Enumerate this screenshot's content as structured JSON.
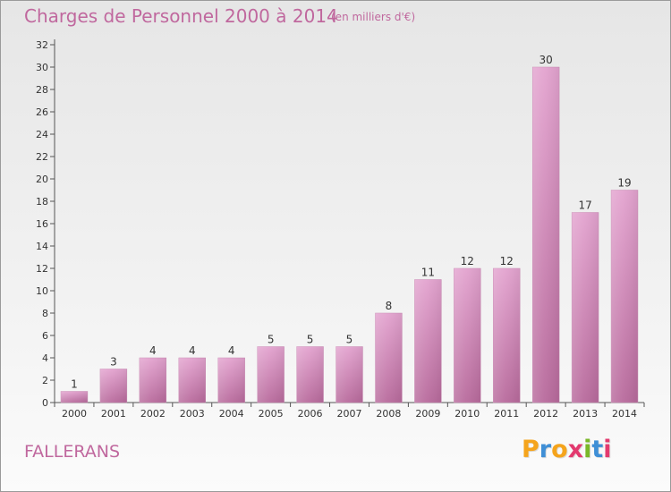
{
  "chart_data": {
    "type": "bar",
    "title": "Charges de Personnel 2000 à 2014",
    "subtitle": "(en milliers d'€)",
    "categories": [
      "2000",
      "2001",
      "2002",
      "2003",
      "2004",
      "2005",
      "2006",
      "2007",
      "2008",
      "2009",
      "2010",
      "2011",
      "2012",
      "2013",
      "2014"
    ],
    "values": [
      1,
      3,
      4,
      4,
      4,
      5,
      5,
      5,
      8,
      11,
      12,
      12,
      30,
      17,
      19
    ],
    "ylim": [
      0,
      32
    ],
    "yticks": [
      0,
      2,
      4,
      6,
      8,
      10,
      12,
      14,
      16,
      18,
      20,
      22,
      24,
      26,
      28,
      30,
      32
    ],
    "xlabel": "",
    "ylabel": "",
    "grid": false,
    "bar_color": "#d88cbf"
  },
  "footer": {
    "place": "FALLERANS",
    "logo": [
      "P",
      "r",
      "o",
      "x",
      "i",
      "t",
      "i"
    ]
  },
  "colors": {
    "accent": "#c0689e",
    "logo": [
      "#f5a41c",
      "#3f8fd6",
      "#f5a41c",
      "#e33a6f",
      "#7ab829",
      "#3f8fd6",
      "#e33a6f"
    ]
  }
}
